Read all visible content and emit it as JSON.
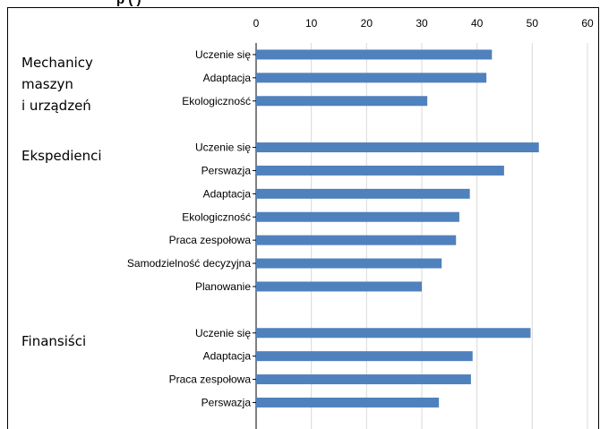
{
  "title_fragment": "p                  (    )",
  "chart_data": {
    "type": "bar",
    "orientation": "horizontal",
    "title": "",
    "xlabel": "",
    "ylabel": "",
    "xlim": [
      0,
      60
    ],
    "x_ticks": [
      "0",
      "10",
      "20",
      "30",
      "40",
      "50",
      "60"
    ],
    "grid": true,
    "legend": "none",
    "bar_color": "#4f81bd",
    "groups": [
      {
        "name_lines": [
          "Mechanicy",
          "maszyn",
          "i urządzeń"
        ],
        "categories": [
          "Uczenie się",
          "Adaptacja",
          "Ekologiczność"
        ],
        "values": [
          42.7,
          41.7,
          31.0
        ]
      },
      {
        "name_lines": [
          "Ekspedienci"
        ],
        "categories": [
          "Uczenie się",
          "Perswazja",
          "Adaptacja",
          "Ekologiczność",
          "Praca zespołowa",
          "Samodzielność decyzyjna",
          "Planowanie"
        ],
        "values": [
          51.2,
          44.9,
          38.7,
          36.8,
          36.2,
          33.6,
          30.0
        ]
      },
      {
        "name_lines": [
          "Finansiści"
        ],
        "categories": [
          "Uczenie się",
          "Adaptacja",
          "Praca zespołowa",
          "Perswazja"
        ],
        "values": [
          49.7,
          39.2,
          38.9,
          33.1
        ]
      }
    ]
  }
}
